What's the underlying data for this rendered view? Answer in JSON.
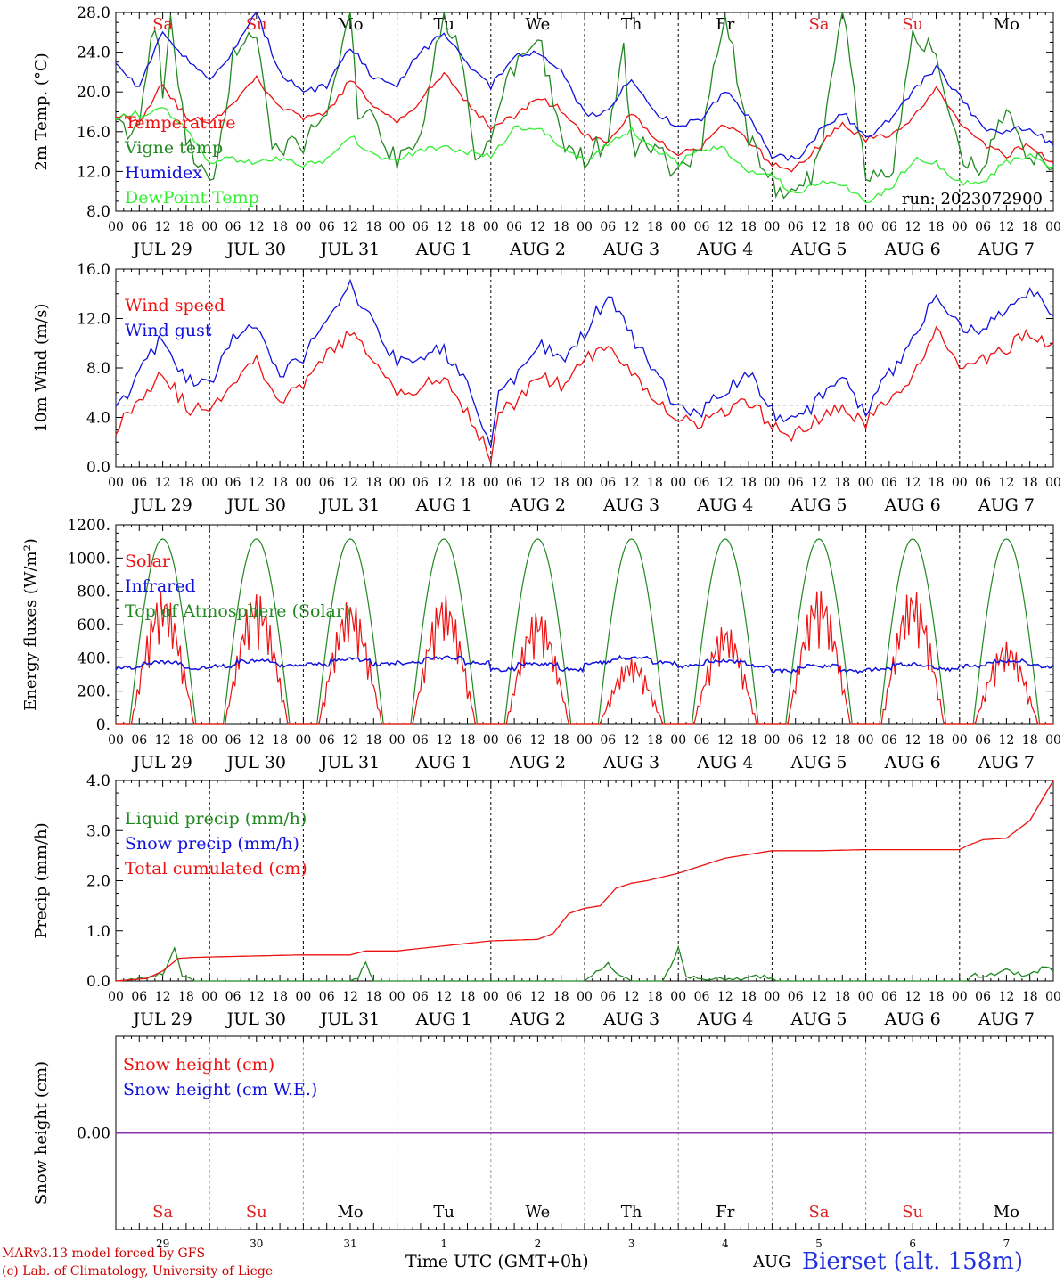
{
  "days": [
    "JUL 29",
    "JUL 30",
    "JUL 31",
    "AUG  1",
    "AUG  2",
    "AUG  3",
    "AUG  4",
    "AUG  5",
    "AUG  6",
    "AUG  7"
  ],
  "weekdays": [
    "Sa",
    "Su",
    "Mo",
    "Tu",
    "We",
    "Th",
    "Fr",
    "Sa",
    "Su",
    "Mo"
  ],
  "weekend_color": "#dd2222",
  "weekday_color": "#000000",
  "hour_ticks": [
    "00",
    "06",
    "12",
    "18"
  ],
  "bottom_day_numbers": [
    "29",
    "30",
    "31",
    "1",
    "2",
    "3",
    "4",
    "5",
    "6",
    "7"
  ],
  "bottom_month": "AUG",
  "time_axis_label": "Time UTC (GMT+0h)",
  "credit_line1": "MARv3.13 model forced by GFS",
  "credit_line2": "(c) Lab. of Climatology, University of Liege",
  "station": "Bierset (alt. 158m)",
  "run_label": "run: 2023072900",
  "chart_data": [
    {
      "id": "temp",
      "type": "line",
      "ylabel": "2m Temp. (°C)",
      "ylim": [
        8,
        28
      ],
      "yticks": [
        "8.0",
        "12.0",
        "16.0",
        "20.0",
        "24.0",
        "28.0"
      ],
      "x_units": "hours since JUL 29 00 UTC",
      "series": [
        {
          "name": "Temperature",
          "color": "#ee1111",
          "x": [
            0,
            6,
            12,
            15,
            18,
            24,
            30,
            36,
            42,
            48,
            54,
            60,
            66,
            72,
            78,
            84,
            90,
            96,
            102,
            108,
            114,
            120,
            126,
            132,
            138,
            144,
            150,
            156,
            162,
            168,
            174,
            180,
            186,
            192,
            198,
            204,
            210,
            216,
            222,
            228,
            234,
            240
          ],
          "y": [
            17.8,
            17,
            21,
            19,
            17.5,
            16.8,
            19,
            21.5,
            18.5,
            17.3,
            17.8,
            21.2,
            18.5,
            17,
            19.2,
            21.8,
            19,
            16.5,
            17.5,
            19.5,
            18.2,
            15.5,
            15.2,
            17.8,
            15.4,
            13.8,
            14.5,
            16.8,
            15,
            12.8,
            12.2,
            14.5,
            16.8,
            15.2,
            15.6,
            17.5,
            20.2,
            17,
            14.7,
            13.6,
            14.8,
            12.6
          ]
        },
        {
          "name": "Vigne temp",
          "color": "#228822",
          "x": [
            0,
            6,
            10,
            12,
            14,
            18,
            24,
            28,
            30,
            36,
            40,
            42,
            48,
            54,
            60,
            62,
            66,
            72,
            78,
            84,
            88,
            92,
            96,
            100,
            108,
            114,
            120,
            126,
            130,
            132,
            138,
            144,
            150,
            156,
            162,
            168,
            174,
            180,
            186,
            192,
            198,
            204,
            210,
            216,
            222,
            228,
            234,
            240
          ],
          "y": [
            16.5,
            16,
            27,
            20,
            28,
            15,
            10.2,
            17,
            24,
            26,
            15,
            14.5,
            15,
            18,
            28,
            18,
            17,
            13,
            16,
            28,
            24,
            13,
            15,
            21,
            26,
            15,
            13.2,
            15.5,
            24,
            14.5,
            14,
            12,
            15,
            28,
            15,
            11,
            9,
            13,
            28,
            12,
            10.5,
            26,
            24,
            14,
            12,
            18,
            13.5,
            12.5
          ]
        },
        {
          "name": "Humidex",
          "color": "#1111dd",
          "x": [
            0,
            6,
            12,
            18,
            24,
            30,
            36,
            42,
            48,
            54,
            60,
            66,
            72,
            78,
            84,
            90,
            96,
            102,
            108,
            114,
            120,
            126,
            132,
            138,
            144,
            150,
            156,
            162,
            168,
            174,
            180,
            186,
            192,
            198,
            204,
            210,
            216,
            222,
            228,
            234,
            240
          ],
          "y": [
            22.8,
            20.5,
            26,
            23.5,
            21,
            24,
            28,
            22,
            20.1,
            20.5,
            24.5,
            21.5,
            20.8,
            24,
            26,
            23,
            20.5,
            23.5,
            24,
            22,
            17.8,
            18,
            21.5,
            18,
            16.5,
            17.2,
            20.3,
            17.5,
            13.5,
            13.2,
            16,
            18,
            15.2,
            17.3,
            20,
            22.5,
            19.5,
            16.5,
            16,
            16.5,
            14.5
          ]
        },
        {
          "name": "DewPoint Temp",
          "color": "#33ee33",
          "x": [
            0,
            6,
            12,
            18,
            24,
            30,
            36,
            42,
            48,
            54,
            60,
            66,
            72,
            78,
            84,
            90,
            96,
            102,
            108,
            114,
            120,
            126,
            132,
            138,
            144,
            150,
            156,
            162,
            168,
            174,
            180,
            186,
            192,
            198,
            204,
            210,
            216,
            222,
            228,
            234,
            240
          ],
          "y": [
            17.5,
            17.8,
            18.3,
            16.5,
            13,
            13.2,
            12.8,
            13.2,
            12.5,
            13.2,
            15.5,
            13.8,
            13,
            14.2,
            14.5,
            14,
            13.5,
            16.3,
            16.5,
            14.2,
            13,
            14.8,
            16.2,
            14.3,
            12.8,
            14.2,
            14.2,
            12.2,
            11.5,
            9.8,
            11,
            10.5,
            9,
            10.2,
            13.2,
            12.8,
            11,
            10.8,
            13,
            13.5,
            12.5
          ]
        }
      ]
    },
    {
      "id": "wind",
      "type": "line",
      "ylabel": "10m Wind (m/s)",
      "ylim": [
        0,
        16
      ],
      "yticks": [
        "0.0",
        "4.0",
        "8.0",
        "12.0",
        "16.0"
      ],
      "reference_line": 5,
      "series": [
        {
          "name": "Wind speed",
          "color": "#ee1111",
          "x": [
            0,
            6,
            12,
            18,
            24,
            30,
            36,
            42,
            48,
            54,
            60,
            66,
            72,
            78,
            84,
            90,
            96,
            98,
            102,
            108,
            114,
            120,
            126,
            132,
            138,
            144,
            150,
            156,
            162,
            168,
            174,
            180,
            186,
            192,
            198,
            204,
            210,
            216,
            222,
            228,
            234,
            240
          ],
          "y": [
            3.2,
            5.5,
            7.8,
            4.8,
            4.5,
            7,
            8.8,
            5.2,
            6.5,
            9,
            10.8,
            8.5,
            6,
            6.5,
            7,
            4.5,
            0.8,
            4.5,
            5,
            7.5,
            6.5,
            8.5,
            10.2,
            7.5,
            5.5,
            4,
            3.5,
            4.5,
            5.2,
            3.5,
            2.5,
            3.8,
            4.8,
            3.5,
            5.5,
            7.5,
            10.8,
            8.2,
            8.5,
            9.5,
            11,
            9.5
          ]
        },
        {
          "name": "Wind gust",
          "color": "#1111dd",
          "x": [
            0,
            6,
            12,
            18,
            24,
            30,
            36,
            42,
            48,
            54,
            60,
            66,
            72,
            78,
            84,
            90,
            96,
            98,
            102,
            108,
            114,
            120,
            126,
            132,
            138,
            144,
            150,
            156,
            162,
            168,
            174,
            180,
            186,
            192,
            198,
            204,
            210,
            216,
            222,
            228,
            234,
            240
          ],
          "y": [
            4.5,
            7.5,
            10.5,
            7,
            6.5,
            10.5,
            11.5,
            7.5,
            9,
            12,
            14.5,
            11.5,
            8.5,
            9,
            9.5,
            6.5,
            1.5,
            6,
            7,
            10,
            8.5,
            10.8,
            14,
            10.5,
            7.5,
            4.8,
            4.5,
            6,
            7.5,
            4.5,
            3.5,
            5.5,
            7,
            4.5,
            7.5,
            10.5,
            14,
            11.5,
            11,
            12.5,
            14.5,
            12.3
          ]
        }
      ]
    },
    {
      "id": "energy",
      "type": "line",
      "ylabel": "Energy fluxes (W/m²)",
      "ylim": [
        0,
        1200
      ],
      "yticks": [
        "0.",
        "200.",
        "400.",
        "600.",
        "800.",
        "1000.",
        "1200."
      ],
      "daily_solar_peak": [
        800,
        800,
        750,
        780,
        690,
        400,
        600,
        820,
        820,
        500
      ],
      "infrared_level": [
        340,
        350,
        360,
        370,
        330,
        370,
        350,
        320,
        330,
        350
      ],
      "series": [
        {
          "name": "Solar",
          "color": "#ee1111"
        },
        {
          "name": "Infrared",
          "color": "#1111dd"
        },
        {
          "name": "Top of Atmosphere (Solar)",
          "color": "#228822",
          "peak": 1115
        }
      ]
    },
    {
      "id": "precip",
      "type": "line",
      "ylabel": "Precip (mm/h)",
      "ylim": [
        0,
        4
      ],
      "yticks": [
        "0.0",
        "1.0",
        "2.0",
        "3.0",
        "4.0"
      ],
      "series": [
        {
          "name": "Liquid precip (mm/h)",
          "color": "#228822",
          "x": [
            0,
            8,
            12,
            15,
            17,
            20,
            60,
            62,
            64,
            66,
            120,
            123,
            126,
            129,
            132,
            140,
            142,
            144,
            146,
            150,
            160,
            166,
            170,
            218,
            220,
            222,
            228,
            230,
            234,
            238,
            240
          ],
          "y": [
            0,
            0.05,
            0.15,
            0.65,
            0.1,
            0,
            0,
            0.05,
            0.35,
            0,
            0,
            0.2,
            0.35,
            0.1,
            0,
            0,
            0.25,
            0.65,
            0.1,
            0.05,
            0.05,
            0.1,
            0,
            0,
            0.15,
            0.05,
            0.25,
            0.15,
            0.1,
            0.3,
            0.2
          ]
        },
        {
          "name": "Snow precip (mm/h)",
          "color": "#1111dd"
        },
        {
          "name": "Total cumulated (cm)",
          "color": "#ee1111",
          "x": [
            0,
            8,
            12,
            16,
            20,
            36,
            48,
            60,
            64,
            72,
            84,
            96,
            108,
            112,
            116,
            120,
            124,
            128,
            132,
            136,
            144,
            148,
            156,
            168,
            180,
            192,
            204,
            216,
            218,
            222,
            228,
            234,
            240
          ],
          "y": [
            0,
            0.05,
            0.2,
            0.45,
            0.47,
            0.5,
            0.52,
            0.52,
            0.6,
            0.6,
            0.7,
            0.8,
            0.83,
            0.95,
            1.35,
            1.45,
            1.5,
            1.85,
            1.95,
            2.0,
            2.15,
            2.25,
            2.45,
            2.6,
            2.6,
            2.62,
            2.62,
            2.62,
            2.7,
            2.82,
            2.85,
            3.2,
            4.0
          ]
        }
      ]
    },
    {
      "id": "snow",
      "type": "line",
      "ylabel": "Snow height (cm)",
      "yticks": [
        "0.00"
      ],
      "series": [
        {
          "name": "Snow height (cm)",
          "color": "#ee1111",
          "value": 0
        },
        {
          "name": "Snow height (cm W.E.)",
          "color": "#1111dd",
          "value": 0
        }
      ]
    }
  ]
}
